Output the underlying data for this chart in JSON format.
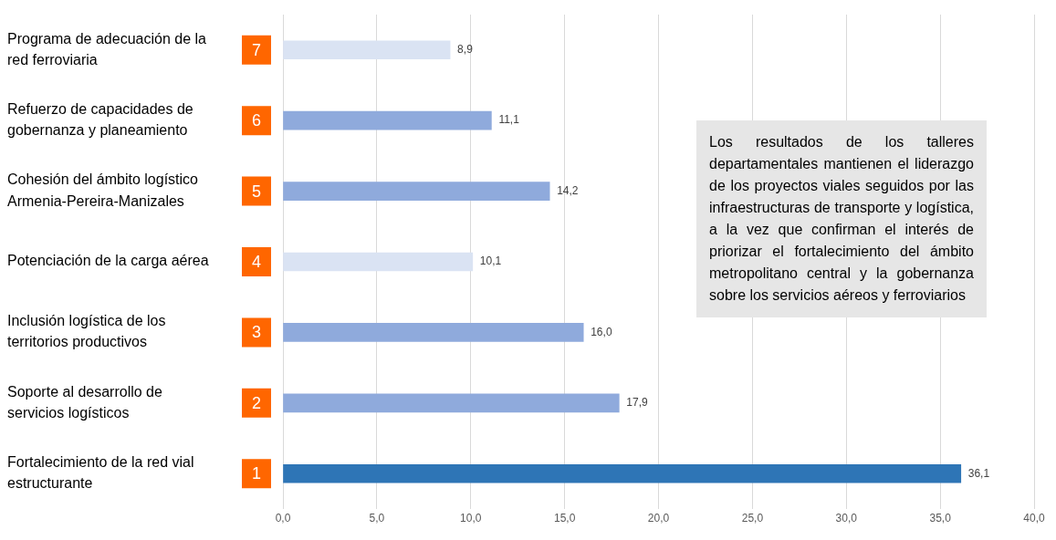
{
  "chart_data": {
    "type": "bar",
    "orientation": "horizontal",
    "categories": [
      "Programa de adecuación de la red ferroviaria",
      "Refuerzo de capacidades de gobernanza y planeamiento",
      "Cohesión del ámbito logístico Armenia-Pereira-Manizales",
      "Potenciación de la carga aérea",
      "Inclusión logística de los territorios productivos",
      "Soporte al desarrollo de servicios logísticos",
      "Fortalecimiento de la red vial estructurante"
    ],
    "values": [
      8.9,
      11.1,
      14.2,
      10.1,
      16.0,
      17.9,
      36.1
    ],
    "colors": [
      "#dae3f3",
      "#8faadc",
      "#8faadc",
      "#dae3f3",
      "#8faadc",
      "#8faadc",
      "#2e75b6"
    ],
    "value_labels": [
      "8,9",
      "11,1",
      "14,2",
      "10,1",
      "16,0",
      "17,9",
      "36,1"
    ],
    "xlim": [
      0,
      40
    ],
    "xticks": [
      {
        "value": 0,
        "label": "0,0"
      },
      {
        "value": 5,
        "label": "5,0"
      },
      {
        "value": 10,
        "label": "10,0"
      },
      {
        "value": 15,
        "label": "15,0"
      },
      {
        "value": 20,
        "label": "20,0"
      },
      {
        "value": 25,
        "label": "25,0"
      },
      {
        "value": 30,
        "label": "30,0"
      },
      {
        "value": 35,
        "label": "35,0"
      },
      {
        "value": 40,
        "label": "40,0"
      }
    ],
    "grid": "x",
    "legend": false,
    "annotations": [
      "7",
      "6",
      "5",
      "4",
      "3",
      "2",
      "1",
      "Los resultados de los talleres departamentales mantienen el liderazgo de los proyectos viales seguidos por las infraestructuras de transporte y logística, a la vez que confirman el interés de priorizar el fortalecimiento del ámbito metropolitano central y la gobernanza sobre los servicios aéreos y ferroviarios"
    ]
  }
}
